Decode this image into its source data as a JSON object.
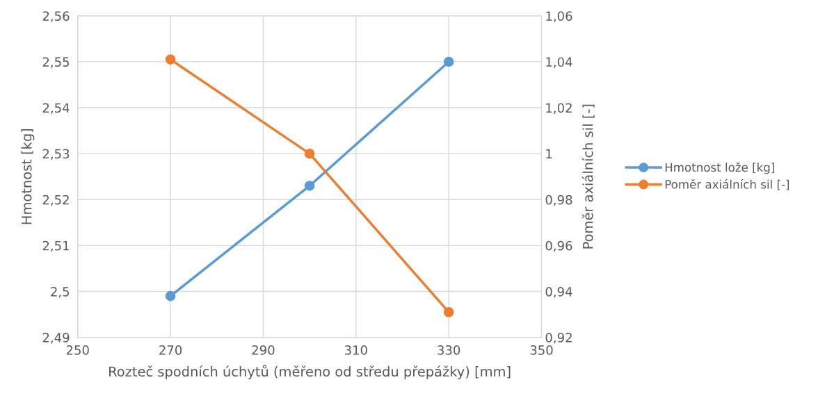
{
  "chart_data": {
    "type": "line",
    "xlabel": "Rozteč spodních úchytů (měřeno od středu přepážky) [mm]",
    "ylabel": "Hmotnost [kg]",
    "y2label": "Poměr axiálních sil [-]",
    "x": [
      270,
      300,
      330
    ],
    "series": [
      {
        "name": "Hmotnost lože [kg]",
        "color": "#5b9bd5",
        "values": [
          2.499,
          2.523,
          2.55
        ]
      },
      {
        "name": "Poměr axiálních sil [-]",
        "color": "#ed7d31",
        "values": [
          1.041,
          1.0,
          0.931
        ],
        "axis": "y2"
      }
    ],
    "xlim": [
      250,
      350
    ],
    "xticks": [
      250,
      270,
      290,
      310,
      330,
      350
    ],
    "ylim": [
      2.49,
      2.56
    ],
    "yticks": [
      {
        "value": 2.49,
        "label": "2,49"
      },
      {
        "value": 2.5,
        "label": "2,5"
      },
      {
        "value": 2.51,
        "label": "2,51"
      },
      {
        "value": 2.52,
        "label": "2,52"
      },
      {
        "value": 2.53,
        "label": "2,53"
      },
      {
        "value": 2.54,
        "label": "2,54"
      },
      {
        "value": 2.55,
        "label": "2,55"
      },
      {
        "value": 2.56,
        "label": "2,56"
      }
    ],
    "y2lim": [
      0.92,
      1.06
    ],
    "y2ticks": [
      {
        "value": 0.92,
        "label": "0,92"
      },
      {
        "value": 0.94,
        "label": "0,94"
      },
      {
        "value": 0.96,
        "label": "0,96"
      },
      {
        "value": 0.98,
        "label": "0,98"
      },
      {
        "value": 1,
        "label": "1"
      },
      {
        "value": 1.02,
        "label": "1,02"
      },
      {
        "value": 1.04,
        "label": "1,04"
      },
      {
        "value": 1.06,
        "label": "1,06"
      }
    ],
    "grid": true,
    "legend": "right",
    "marker": "circle",
    "line_style": "solid"
  }
}
